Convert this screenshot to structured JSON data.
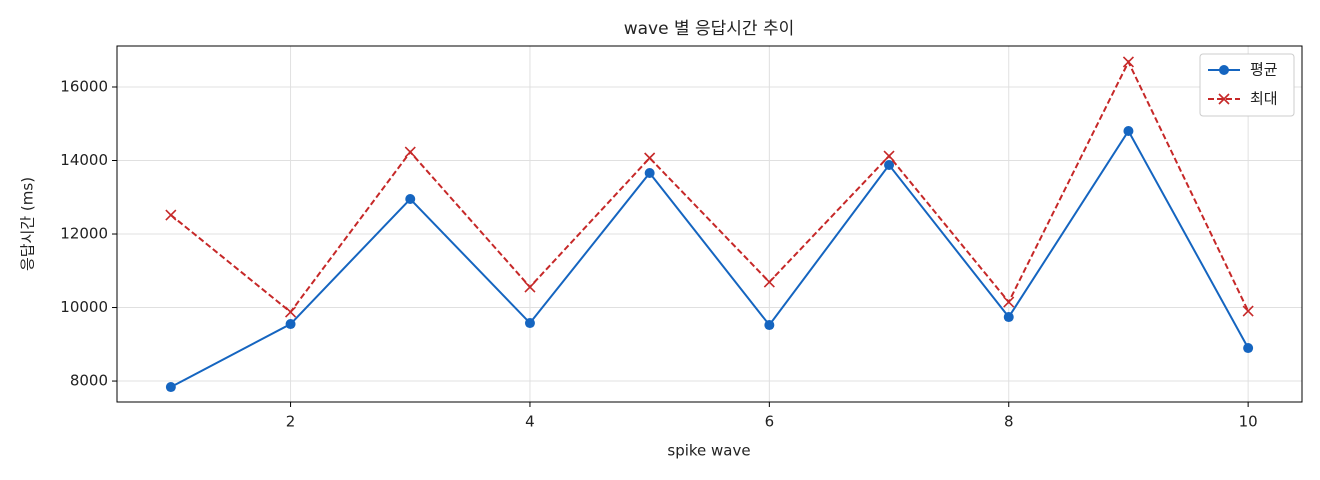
{
  "chart_data": {
    "type": "line",
    "title": "wave 별 응답시간 추이",
    "x_label": "spike wave",
    "y_label": "응답시간 (ms)",
    "x": [
      1,
      2,
      3,
      4,
      5,
      6,
      7,
      8,
      9,
      10
    ],
    "series": [
      {
        "name": "평균",
        "color": "#1565c0",
        "marker": "circle",
        "linestyle": "solid",
        "values": [
          7837,
          9551,
          12952,
          9578,
          13660,
          9524,
          13878,
          9741,
          14803,
          8898
        ]
      },
      {
        "name": "최대",
        "color": "#c62828",
        "marker": "x",
        "linestyle": "dashed",
        "values": [
          12517,
          9878,
          14231,
          10558,
          14068,
          10694,
          14122,
          10150,
          16680,
          9905
        ]
      }
    ],
    "xlim": [
      0.55,
      10.45
    ],
    "ylim": [
      7430,
      17115
    ],
    "xticks": [
      2,
      4,
      6,
      8,
      10
    ],
    "yticks": [
      8000,
      10000,
      12000,
      14000,
      16000
    ],
    "grid": true,
    "legend": "upper right"
  }
}
